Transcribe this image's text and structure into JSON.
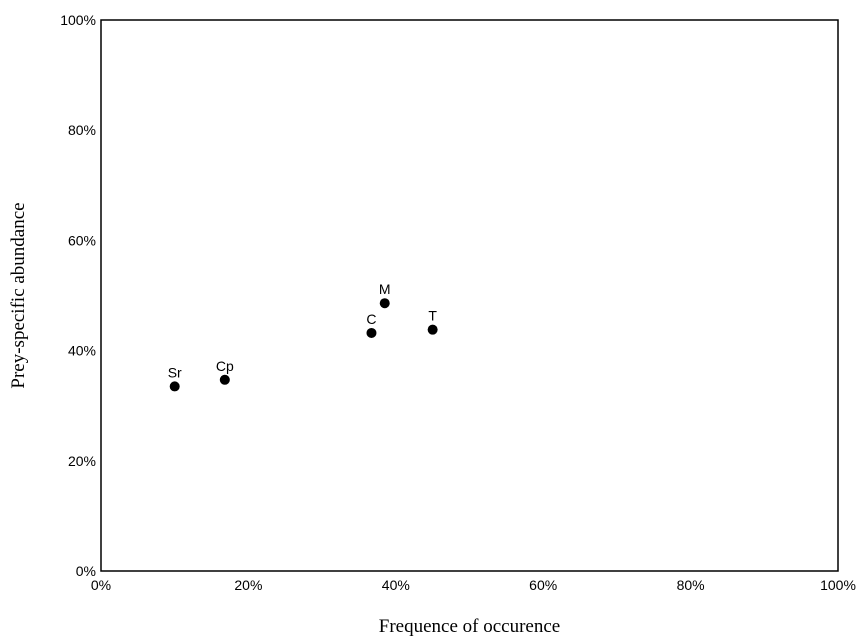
{
  "chart_data": {
    "type": "scatter",
    "title": "",
    "xlabel": "Frequence of occurence",
    "ylabel": "Prey-specific abundance",
    "xlim": [
      0,
      100
    ],
    "ylim": [
      0,
      100
    ],
    "x_ticks": [
      "0%",
      "20%",
      "40%",
      "60%",
      "80%",
      "100%"
    ],
    "y_ticks": [
      "0%",
      "20%",
      "40%",
      "60%",
      "80%",
      "100%"
    ],
    "grid": false,
    "points": [
      {
        "label": "Sr",
        "x": 10,
        "y": 33.5
      },
      {
        "label": "Cp",
        "x": 16.8,
        "y": 34.7
      },
      {
        "label": "C",
        "x": 36.7,
        "y": 43.2
      },
      {
        "label": "M",
        "x": 38.5,
        "y": 48.6
      },
      {
        "label": "T",
        "x": 45,
        "y": 43.8
      }
    ],
    "marker_color": "#000000"
  }
}
